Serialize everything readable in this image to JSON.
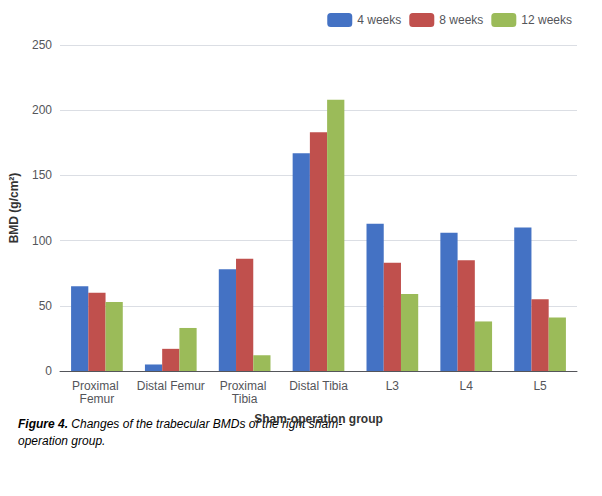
{
  "chart_data": {
    "type": "bar",
    "categories": [
      "Proximal Femur",
      "Distal Femur",
      "Proximal Tibia",
      "Distal Tibia",
      "L3",
      "L4",
      "L5"
    ],
    "series": [
      {
        "name": "4 weeks",
        "color": "#4472C4",
        "values": [
          65,
          5,
          78,
          167,
          113,
          106,
          110
        ]
      },
      {
        "name": "8 weeks",
        "color": "#C0504D",
        "values": [
          60,
          17,
          86,
          183,
          83,
          85,
          55
        ]
      },
      {
        "name": "12 weeks",
        "color": "#9BBB59",
        "values": [
          53,
          33,
          12,
          208,
          59,
          38,
          41
        ]
      }
    ],
    "xlabel": "Sham-operation group",
    "ylabel": "BMD (g/cm²)",
    "ylim": [
      0,
      250
    ],
    "yticks": [
      0,
      50,
      100,
      150,
      200,
      250
    ],
    "grid": true,
    "legend": "upper right",
    "annotations": [
      "Figure 4.",
      " Changes of the trabecular BMDs of the right sham-\noperation group."
    ]
  }
}
